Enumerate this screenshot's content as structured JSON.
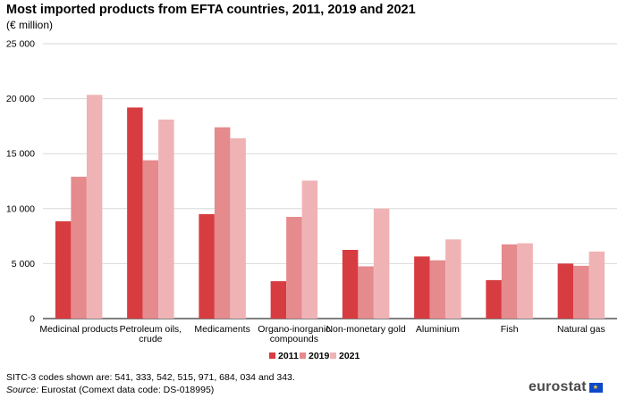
{
  "title": "Most imported products from EFTA countries, 2011, 2019 and 2021",
  "subtitle": "(€ million)",
  "notes": {
    "codes": "SITC-3 codes shown are: 541, 333, 542, 515, 971, 684, 034 and 343.",
    "source_label": "Source:",
    "source_text": " Eurostat (Comext data code: DS-018995)"
  },
  "logo": {
    "text": "eurostat",
    "icon": "eu-flag-icon"
  },
  "chart_data": {
    "type": "bar",
    "title": "Most imported products from EFTA countries, 2011, 2019 and 2021",
    "subtitle": "(€ million)",
    "categories": [
      "Medicinal products",
      "Petroleum oils, crude",
      "Medicaments",
      "Organo-inorganic compounds",
      "Non-monetary gold",
      "Aluminium",
      "Fish",
      "Natural gas"
    ],
    "category_lines": [
      [
        "Medicinal products"
      ],
      [
        "Petroleum oils,",
        "crude"
      ],
      [
        "Medicaments"
      ],
      [
        "Organo-inorganic",
        "compounds"
      ],
      [
        "Non-monetary gold"
      ],
      [
        "Aluminium"
      ],
      [
        "Fish"
      ],
      [
        "Natural gas"
      ]
    ],
    "series": [
      {
        "name": "2011",
        "color": "#d73c41",
        "values": [
          8850,
          19200,
          9500,
          3400,
          6250,
          5650,
          3500,
          5000
        ]
      },
      {
        "name": "2019",
        "color": "#e58a8d",
        "values": [
          12900,
          14400,
          17400,
          9250,
          4750,
          5300,
          6750,
          4800
        ]
      },
      {
        "name": "2021",
        "color": "#f0b3b5",
        "values": [
          20350,
          18100,
          16400,
          12550,
          10000,
          7200,
          6850,
          6100
        ]
      }
    ],
    "ylim": [
      0,
      25000
    ],
    "yticks": [
      0,
      5000,
      10000,
      15000,
      20000,
      25000
    ],
    "ytick_labels": [
      "0",
      "5 000",
      "10 000",
      "15 000",
      "20 000",
      "25 000"
    ],
    "grid": true,
    "legend_position": "bottom-center",
    "xlabel": "",
    "ylabel": ""
  }
}
